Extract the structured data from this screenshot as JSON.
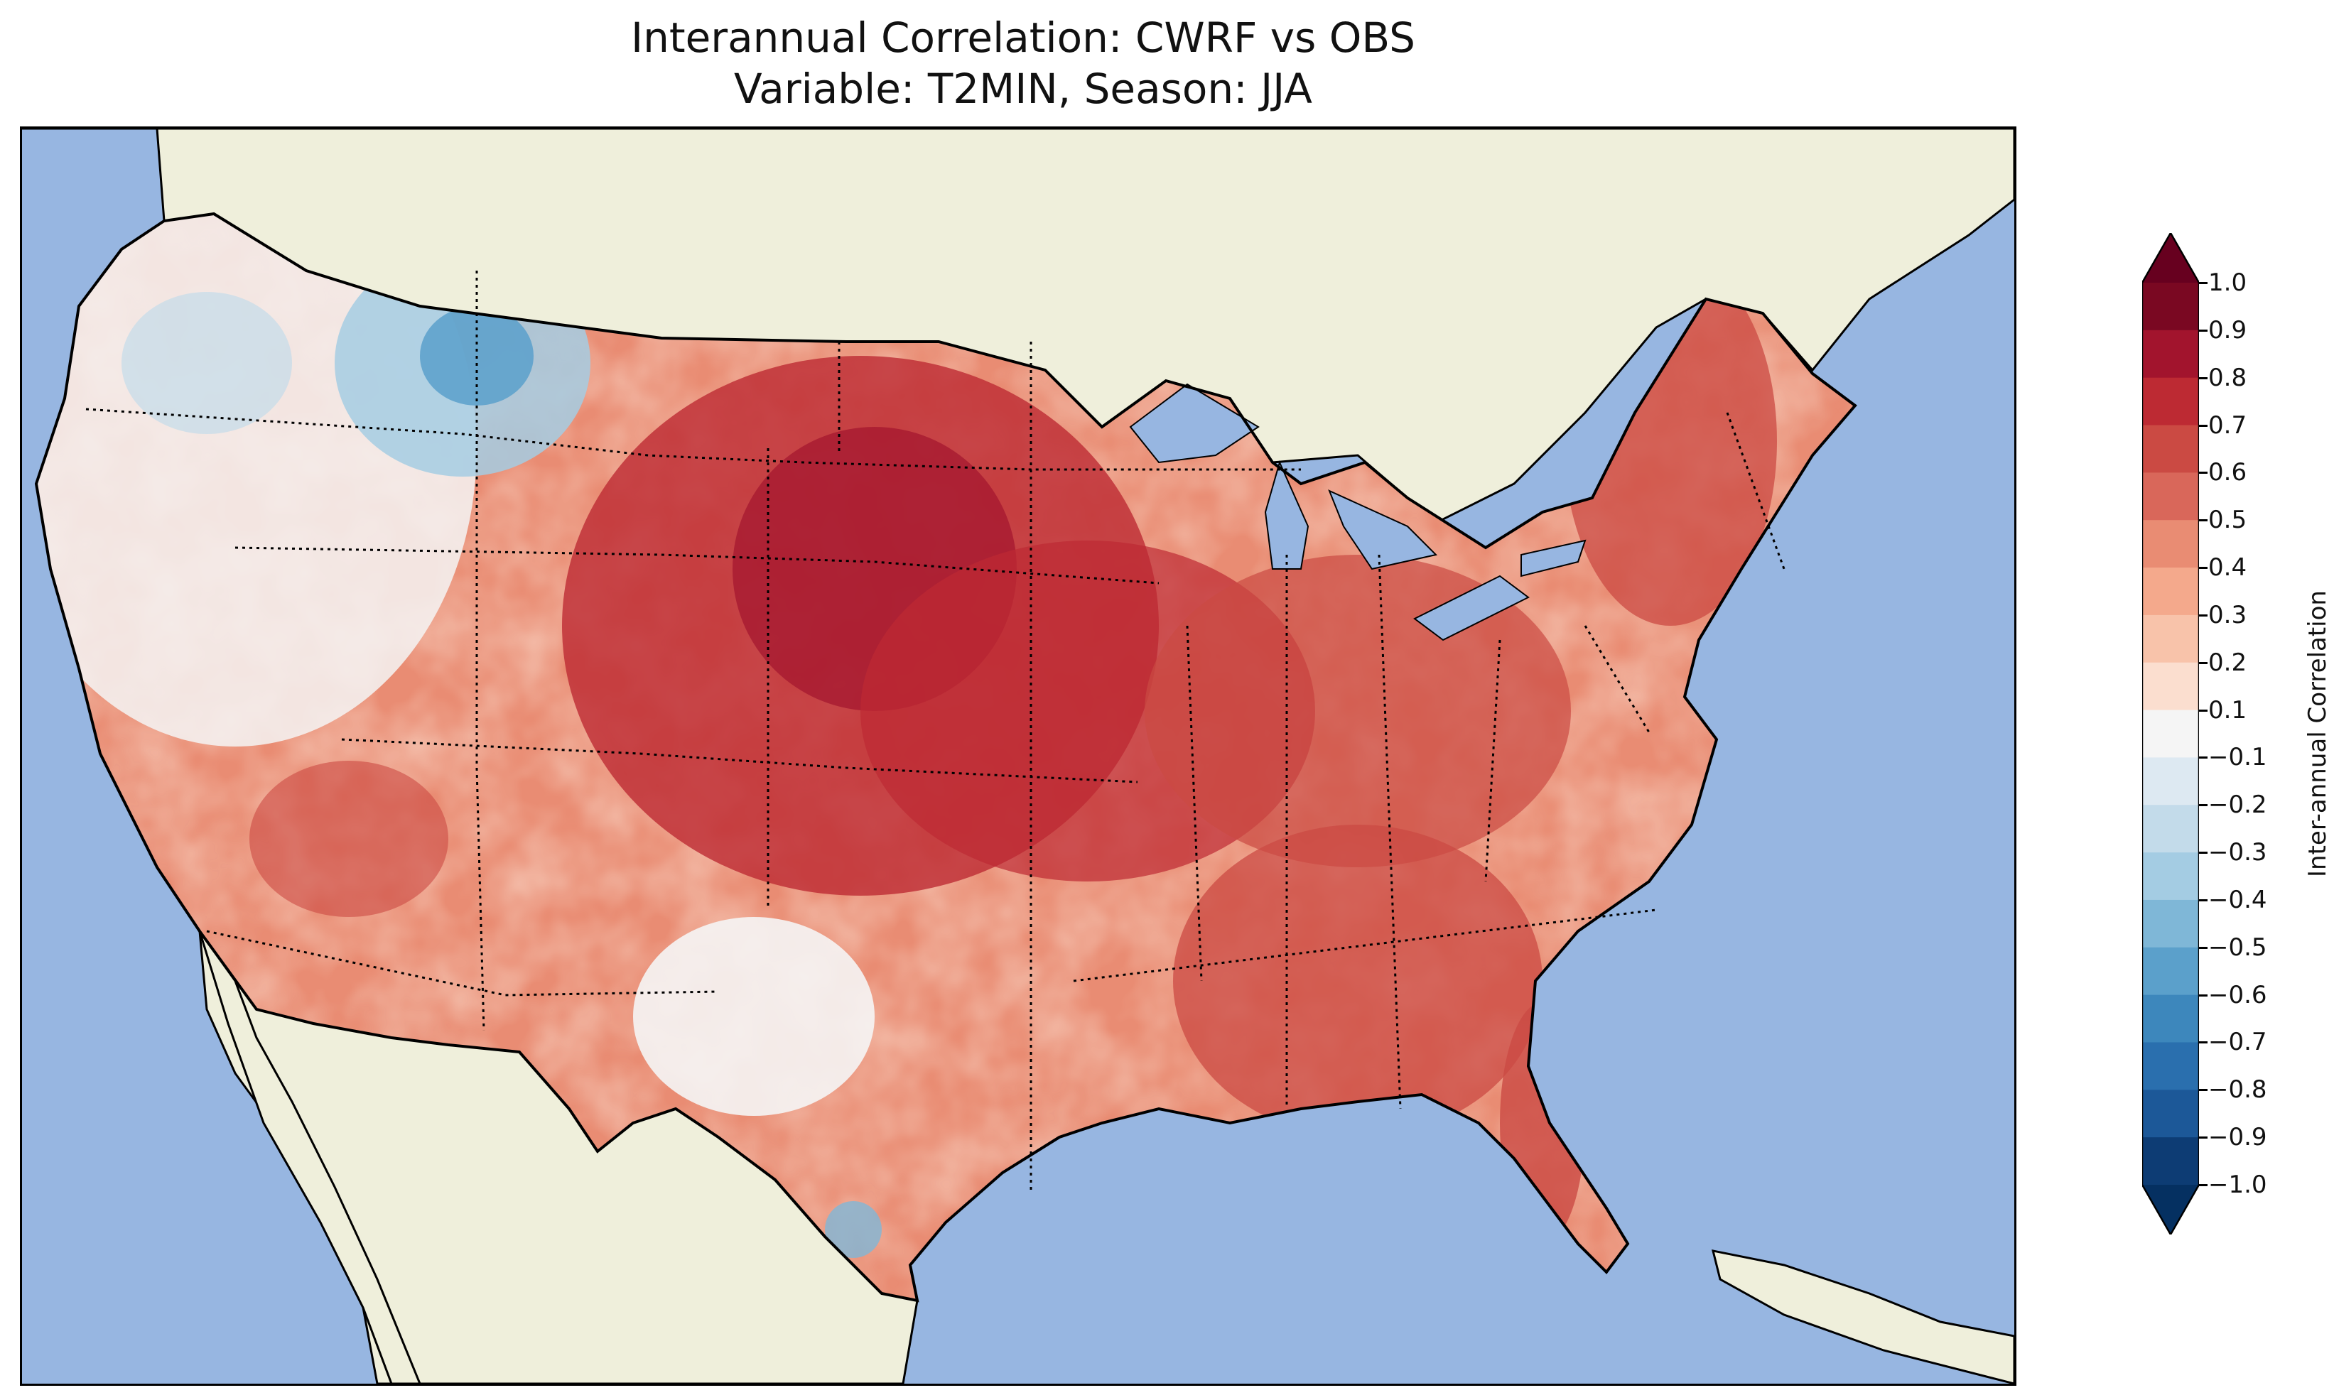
{
  "title": {
    "line1": "Interannual Correlation: CWRF vs OBS",
    "line2": "Variable: T2MIN, Season: JJA"
  },
  "map": {
    "ocean_color": "#97b6e1",
    "land_color": "#efefdb",
    "coastline_color": "#000000",
    "state_border_style": "dotted",
    "field": "interannual correlation of T2MIN (CWRF vs OBS), JJA"
  },
  "colorbar": {
    "label": "Inter-annual Correlation",
    "ticks": [
      "1.0",
      "0.9",
      "0.8",
      "0.7",
      "0.6",
      "0.5",
      "0.4",
      "0.3",
      "0.2",
      "0.1",
      "−0.1",
      "−0.2",
      "−0.3",
      "−0.4",
      "−0.5",
      "−0.6",
      "−0.7",
      "−0.8",
      "−0.9",
      "−1.0"
    ],
    "bins": [
      {
        "range": [
          0.9,
          1.0
        ],
        "color": "#7a0822"
      },
      {
        "range": [
          0.8,
          0.9
        ],
        "color": "#a2142d"
      },
      {
        "range": [
          0.7,
          0.8
        ],
        "color": "#bd2a33"
      },
      {
        "range": [
          0.6,
          0.7
        ],
        "color": "#cb4a43"
      },
      {
        "range": [
          0.5,
          0.6
        ],
        "color": "#d9675a"
      },
      {
        "range": [
          0.4,
          0.5
        ],
        "color": "#e98c73"
      },
      {
        "range": [
          0.3,
          0.4
        ],
        "color": "#f4a98c"
      },
      {
        "range": [
          0.2,
          0.3
        ],
        "color": "#f8c3aa"
      },
      {
        "range": [
          0.1,
          0.2
        ],
        "color": "#fbdecf"
      },
      {
        "range": [
          -0.1,
          0.1
        ],
        "color": "#f5f5f5"
      },
      {
        "range": [
          -0.2,
          -0.1
        ],
        "color": "#dde9f2"
      },
      {
        "range": [
          -0.3,
          -0.2
        ],
        "color": "#c3dbea"
      },
      {
        "range": [
          -0.4,
          -0.3
        ],
        "color": "#a4cce3"
      },
      {
        "range": [
          -0.5,
          -0.4
        ],
        "color": "#7fb7d7"
      },
      {
        "range": [
          -0.6,
          -0.5
        ],
        "color": "#5ba0cb"
      },
      {
        "range": [
          -0.7,
          -0.6
        ],
        "color": "#3d87bc"
      },
      {
        "range": [
          -0.8,
          -0.7
        ],
        "color": "#2a6fae"
      },
      {
        "range": [
          -0.9,
          -0.8
        ],
        "color": "#1c5898"
      },
      {
        "range": [
          -1.0,
          -0.9
        ],
        "color": "#0d3c74"
      }
    ],
    "extend": "both"
  }
}
